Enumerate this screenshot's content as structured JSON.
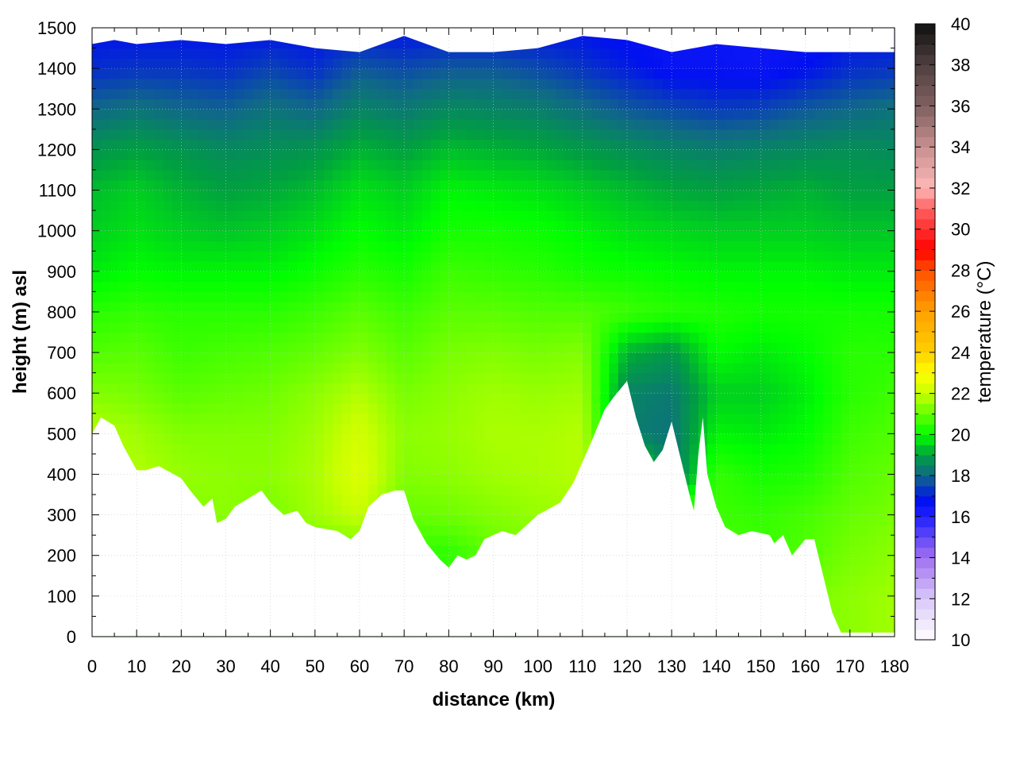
{
  "chart_data": {
    "type": "heatmap",
    "title": "",
    "xlabel": "distance (km)",
    "ylabel": "height (m) asl",
    "colorbar_label": "temperature (°C)",
    "xlim": [
      0,
      180
    ],
    "ylim": [
      0,
      1500
    ],
    "clim": [
      10,
      40
    ],
    "grid": true,
    "x_ticks": [
      0,
      10,
      20,
      30,
      40,
      50,
      60,
      70,
      80,
      90,
      100,
      110,
      120,
      130,
      140,
      150,
      160,
      170,
      180
    ],
    "y_ticks": [
      0,
      100,
      200,
      300,
      400,
      500,
      600,
      700,
      800,
      900,
      1000,
      1100,
      1200,
      1300,
      1400,
      1500
    ],
    "colorbar_ticks": [
      10,
      12,
      14,
      16,
      18,
      20,
      22,
      24,
      26,
      28,
      30,
      32,
      34,
      36,
      38,
      40
    ],
    "palette": [
      {
        "t": 10,
        "c": "#ffffff"
      },
      {
        "t": 12,
        "c": "#d8c8f8"
      },
      {
        "t": 14,
        "c": "#a070f0"
      },
      {
        "t": 16,
        "c": "#2020ff"
      },
      {
        "t": 16.8,
        "c": "#0010f0"
      },
      {
        "t": 18,
        "c": "#106888"
      },
      {
        "t": 19,
        "c": "#00a040"
      },
      {
        "t": 20,
        "c": "#00ff00"
      },
      {
        "t": 22,
        "c": "#c8ff00"
      },
      {
        "t": 23,
        "c": "#ffff00"
      },
      {
        "t": 24,
        "c": "#ffd000"
      },
      {
        "t": 26,
        "c": "#ffa000"
      },
      {
        "t": 28,
        "c": "#ff5000"
      },
      {
        "t": 29,
        "c": "#ff0000"
      },
      {
        "t": 31,
        "c": "#ff6060"
      },
      {
        "t": 32,
        "c": "#ffb8b8"
      },
      {
        "t": 34,
        "c": "#c89090"
      },
      {
        "t": 36,
        "c": "#806060"
      },
      {
        "t": 38,
        "c": "#504040"
      },
      {
        "t": 40,
        "c": "#101010"
      }
    ],
    "grid_x_km": [
      0,
      10,
      20,
      30,
      40,
      50,
      60,
      70,
      80,
      90,
      100,
      110,
      120,
      130,
      140,
      150,
      160,
      170,
      180
    ],
    "grid_heights_m": [
      0,
      100,
      200,
      300,
      400,
      500,
      600,
      700,
      800,
      900,
      1000,
      1100,
      1200,
      1300,
      1400,
      1500
    ],
    "temperature": [
      [
        21,
        21,
        21,
        21,
        21,
        21,
        21,
        21,
        21,
        21,
        21.2,
        21.4,
        21,
        21,
        21,
        21,
        21.2,
        21.4,
        21.6
      ],
      [
        21,
        21,
        21,
        21,
        21,
        21,
        21,
        21,
        21,
        21,
        21.2,
        21.4,
        21,
        21,
        21,
        21,
        21.2,
        21.4,
        21.6
      ],
      [
        21,
        21,
        21,
        21,
        21,
        21,
        21,
        20.5,
        20.4,
        21.0,
        21.2,
        21.4,
        21,
        21,
        20.8,
        20.6,
        20.8,
        21.2,
        21.4
      ],
      [
        21,
        21,
        21.3,
        21.4,
        21.2,
        21.6,
        22.0,
        21.0,
        21.1,
        21.3,
        21.5,
        21.6,
        21,
        21,
        20.6,
        20.5,
        20.7,
        21.0,
        21.2
      ],
      [
        21.5,
        21.8,
        21.5,
        21.4,
        21.4,
        21.7,
        22.4,
        21.3,
        21.4,
        21.6,
        21.7,
        21.8,
        21,
        18.2,
        20.5,
        20.2,
        20.3,
        20.8,
        21.0
      ],
      [
        21.8,
        21.6,
        21.3,
        21.3,
        21.3,
        21.6,
        22.2,
        21.4,
        21.5,
        21.7,
        21.7,
        21.8,
        18.4,
        18.2,
        19.9,
        19.8,
        20.0,
        20.6,
        20.8
      ],
      [
        21.3,
        21.2,
        20.9,
        21.0,
        21.1,
        21.4,
        21.8,
        21.2,
        21.4,
        21.6,
        21.5,
        21.6,
        18.5,
        18.3,
        19.5,
        19.5,
        19.8,
        20.4,
        20.6
      ],
      [
        20.8,
        20.9,
        20.6,
        20.7,
        20.8,
        21.0,
        21.3,
        20.9,
        21.2,
        21.3,
        21.2,
        21.3,
        19.2,
        18.8,
        20.0,
        19.8,
        20.0,
        20.4,
        20.4
      ],
      [
        20.4,
        20.5,
        20.4,
        20.4,
        20.4,
        20.6,
        20.9,
        20.6,
        20.9,
        20.9,
        20.8,
        20.8,
        20.6,
        20.4,
        20.3,
        20.2,
        20.2,
        20.2,
        20.2
      ],
      [
        19.8,
        20.0,
        19.9,
        19.9,
        19.9,
        20.1,
        20.4,
        20.2,
        20.6,
        20.5,
        20.4,
        20.2,
        20.1,
        20.0,
        19.9,
        19.9,
        19.9,
        19.8,
        19.8
      ],
      [
        19.5,
        19.7,
        19.5,
        19.4,
        19.5,
        19.7,
        20.0,
        19.8,
        20.2,
        20.2,
        20.1,
        19.9,
        19.7,
        19.6,
        19.5,
        19.5,
        19.5,
        19.4,
        19.4
      ],
      [
        19.3,
        19.5,
        19.2,
        19.0,
        19.1,
        19.3,
        19.7,
        19.5,
        19.9,
        19.8,
        19.7,
        19.5,
        19.3,
        19.1,
        19.0,
        19.1,
        19.2,
        19.0,
        19.0
      ],
      [
        18.8,
        19.0,
        18.8,
        18.6,
        18.7,
        18.8,
        19.2,
        19.0,
        19.3,
        19.2,
        19.1,
        18.9,
        18.7,
        18.5,
        18.4,
        18.5,
        18.6,
        18.7,
        18.6
      ],
      [
        18.0,
        18.2,
        18.0,
        17.9,
        18.2,
        18.0,
        18.5,
        18.3,
        18.6,
        18.5,
        18.4,
        18.1,
        17.8,
        17.6,
        17.4,
        17.5,
        17.8,
        18.0,
        18.2
      ],
      [
        17.2,
        17.3,
        17.3,
        17.2,
        17.5,
        17.2,
        17.8,
        17.6,
        17.8,
        17.8,
        17.6,
        17.3,
        17.0,
        16.6,
        16.6,
        16.5,
        16.8,
        17.2,
        17.3
      ],
      [
        16.8,
        16.8,
        16.8,
        16.8,
        16.8,
        16.8,
        16.8,
        16.8,
        16.8,
        16.8,
        16.8,
        16.8,
        16.6,
        16.5,
        16.5,
        16.5,
        16.5,
        16.8,
        16.8
      ]
    ],
    "terrain_km": [
      0,
      2,
      5,
      7,
      10,
      12,
      15,
      20,
      22,
      25,
      27,
      28,
      30,
      32,
      35,
      38,
      40,
      43,
      46,
      48,
      50,
      55,
      58,
      60,
      62,
      65,
      68,
      70,
      72,
      75,
      78,
      80,
      82,
      84,
      86,
      88,
      92,
      95,
      98,
      100,
      105,
      108,
      112,
      115,
      117,
      120,
      122,
      124,
      126,
      128,
      130,
      132,
      134,
      135,
      136,
      137,
      138,
      140,
      142,
      145,
      148,
      152,
      153,
      155,
      157,
      160,
      162,
      164,
      166,
      168,
      180
    ],
    "terrain_height_m": [
      500,
      540,
      520,
      470,
      410,
      410,
      420,
      390,
      360,
      320,
      340,
      280,
      290,
      320,
      340,
      360,
      330,
      300,
      310,
      280,
      270,
      260,
      240,
      260,
      320,
      350,
      360,
      360,
      290,
      230,
      190,
      170,
      200,
      190,
      200,
      240,
      260,
      250,
      280,
      300,
      330,
      380,
      480,
      560,
      590,
      630,
      540,
      470,
      430,
      460,
      530,
      440,
      350,
      310,
      450,
      540,
      400,
      320,
      270,
      250,
      260,
      250,
      230,
      250,
      200,
      240,
      240,
      150,
      60,
      10,
      10
    ],
    "upper_boundary_km": [
      0,
      5,
      10,
      20,
      30,
      40,
      50,
      60,
      70,
      80,
      90,
      100,
      110,
      120,
      130,
      140,
      150,
      160,
      167,
      168,
      180
    ],
    "upper_boundary_m": [
      1460,
      1470,
      1460,
      1470,
      1460,
      1470,
      1450,
      1440,
      1480,
      1440,
      1440,
      1450,
      1480,
      1470,
      1440,
      1460,
      1450,
      1440,
      1440,
      1440,
      1440
    ]
  }
}
